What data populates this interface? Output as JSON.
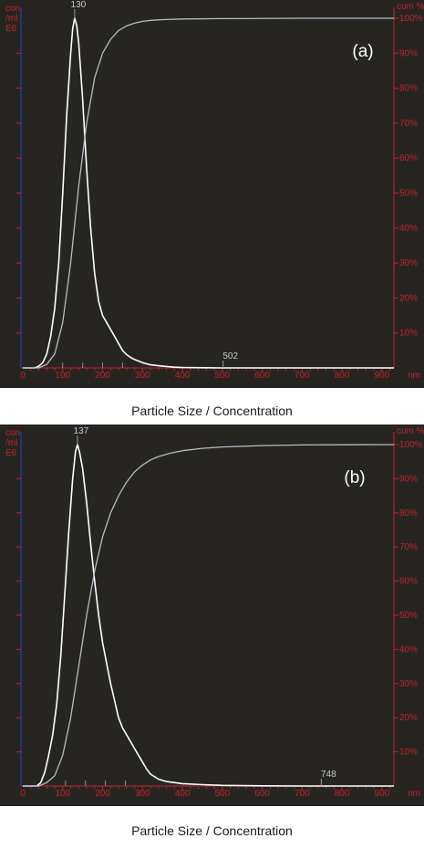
{
  "chart_data": [
    {
      "type": "line",
      "panel_label": "(a)",
      "caption": "Particle Size / Concentration",
      "left_axis": {
        "lines": [
          "con",
          "/ml",
          "E6"
        ]
      },
      "right_axis": {
        "label": "cum %",
        "ticks": [
          "10%",
          "20%",
          "30%",
          "40%",
          "50%",
          "60%",
          "70%",
          "80%",
          "90%",
          "100%"
        ],
        "range": [
          0,
          100
        ]
      },
      "x_axis": {
        "unit": "nm",
        "ticks": [
          0,
          100,
          200,
          300,
          400,
          500,
          600,
          700,
          800,
          900
        ],
        "range": [
          0,
          930
        ]
      },
      "peak_label": "130",
      "marker_label": "502",
      "colors": {
        "background": "#262522",
        "axis": "#c0222a",
        "left_axis": "#2b3fb8",
        "distribution": "#ffffff",
        "cumulative": "#b9b9c9"
      },
      "series": [
        {
          "role": "distribution",
          "x": [
            0,
            30,
            40,
            50,
            60,
            70,
            80,
            90,
            100,
            110,
            120,
            125,
            130,
            135,
            140,
            150,
            160,
            170,
            180,
            190,
            200,
            210,
            220,
            230,
            240,
            250,
            260,
            270,
            280,
            300,
            320,
            350,
            380,
            400,
            450,
            500,
            600,
            700,
            800,
            930
          ],
          "y": [
            0,
            0,
            0.5,
            1.5,
            4,
            9,
            17,
            30,
            50,
            72,
            90,
            97,
            100,
            98,
            93,
            77,
            57,
            40,
            27,
            19,
            15,
            13,
            11,
            9,
            7,
            5,
            3.8,
            3,
            2.4,
            1.5,
            0.9,
            0.5,
            0.2,
            0.1,
            0.05,
            0,
            0,
            0,
            0,
            0
          ]
        },
        {
          "role": "cumulative",
          "x": [
            0,
            40,
            60,
            80,
            100,
            120,
            140,
            160,
            180,
            200,
            220,
            240,
            260,
            280,
            300,
            320,
            350,
            400,
            500,
            700,
            930
          ],
          "y": [
            0,
            0,
            1,
            4,
            13,
            30,
            52,
            70,
            83,
            90,
            94,
            96.5,
            97.8,
            98.6,
            99.1,
            99.4,
            99.6,
            99.8,
            99.9,
            100,
            100
          ]
        }
      ]
    },
    {
      "type": "line",
      "panel_label": "(b)",
      "caption": "Particle Size / Concentration",
      "left_axis": {
        "lines": [
          "con",
          "/ml",
          "E6"
        ]
      },
      "right_axis": {
        "label": "cum %",
        "ticks": [
          "10%",
          "20%",
          "30%",
          "40%",
          "50%",
          "60%",
          "70%",
          "80%",
          "90%",
          "100%"
        ],
        "range": [
          0,
          100
        ]
      },
      "x_axis": {
        "unit": "nm",
        "ticks": [
          0,
          100,
          200,
          300,
          400,
          500,
          600,
          700,
          800,
          900
        ],
        "range": [
          0,
          930
        ]
      },
      "peak_label": "137",
      "marker_label": "748",
      "colors": {
        "background": "#262522",
        "axis": "#c0222a",
        "left_axis": "#2b3fb8",
        "distribution": "#ffffff",
        "cumulative": "#b9b9c9"
      },
      "series": [
        {
          "role": "distribution",
          "x": [
            0,
            35,
            45,
            55,
            65,
            75,
            85,
            95,
            105,
            115,
            125,
            132,
            137,
            142,
            150,
            160,
            170,
            180,
            190,
            200,
            210,
            220,
            230,
            240,
            250,
            260,
            270,
            280,
            290,
            300,
            310,
            320,
            340,
            360,
            400,
            450,
            500,
            600,
            700,
            930
          ],
          "y": [
            0,
            0,
            1,
            4,
            9,
            15,
            24,
            38,
            56,
            74,
            90,
            98,
            100,
            98,
            93,
            83,
            71,
            60,
            50,
            42,
            36,
            30,
            25,
            20,
            17,
            15,
            13,
            11,
            9,
            7,
            5,
            3.5,
            2,
            1.3,
            0.7,
            0.4,
            0.2,
            0.05,
            0,
            0
          ]
        },
        {
          "role": "cumulative",
          "x": [
            0,
            40,
            60,
            80,
            100,
            120,
            140,
            160,
            180,
            200,
            220,
            240,
            260,
            280,
            300,
            320,
            340,
            370,
            400,
            450,
            500,
            600,
            700,
            930
          ],
          "y": [
            0,
            0,
            1,
            3,
            9,
            20,
            35,
            50,
            63,
            73,
            80,
            85,
            89,
            92,
            94,
            95.5,
            96.5,
            97.5,
            98.2,
            98.9,
            99.3,
            99.7,
            99.9,
            100
          ]
        }
      ]
    }
  ]
}
